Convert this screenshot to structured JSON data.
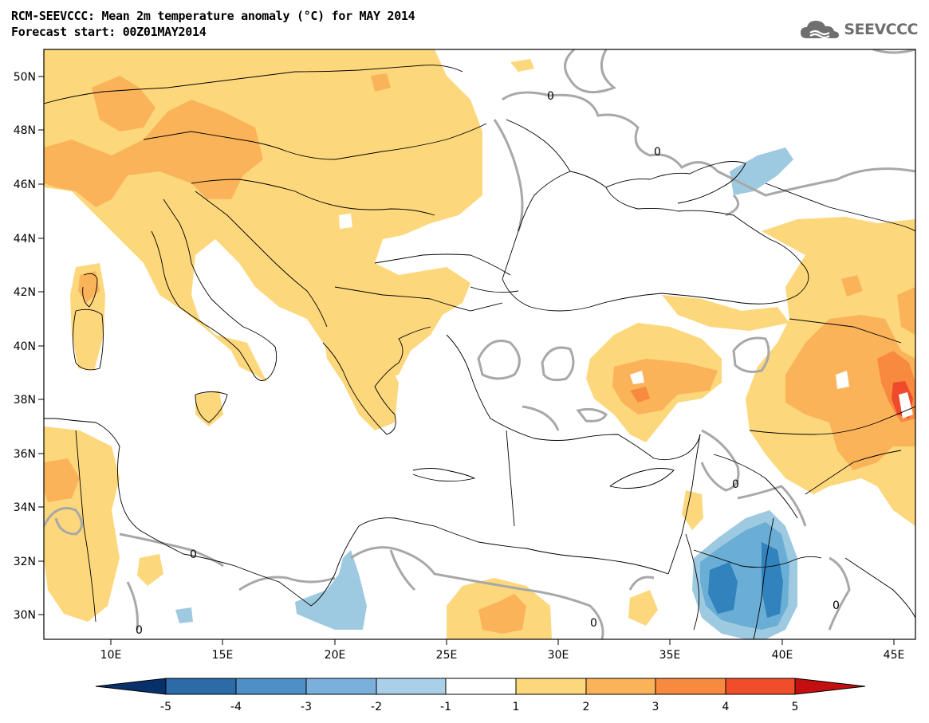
{
  "header": {
    "title_line1": "RCM-SEEVCCC: Mean 2m temperature anomaly (°C) for MAY 2014",
    "title_line2": "Forecast start: 00Z01MAY2014",
    "logo_text": "SEEVCCC"
  },
  "map": {
    "lon_ticks": [
      "10E",
      "15E",
      "20E",
      "25E",
      "30E",
      "35E",
      "40E",
      "45E"
    ],
    "lat_ticks": [
      "50N",
      "48N",
      "46N",
      "44N",
      "42N",
      "40N",
      "38N",
      "36N",
      "34N",
      "32N",
      "30N"
    ],
    "contour_label": "0",
    "colors": {
      "land_border": "#000000",
      "zero_contour": "#a8a8a8",
      "anom_1_2": "#fdd77b",
      "anom_2_3": "#fbb35a",
      "anom_3_4": "#f88a3f",
      "anom_4_5": "#ef4a2b",
      "anom_m1_m2": "#9ecae1",
      "anom_m2_m3": "#6aaed6",
      "anom_m3_m4": "#3182bd"
    }
  },
  "colorbar": {
    "labels": [
      "-5",
      "-4",
      "-3",
      "-2",
      "-1",
      "1",
      "2",
      "3",
      "4",
      "5"
    ],
    "colors": [
      "#08306b",
      "#2c6aa8",
      "#4f8fc7",
      "#7cb0dc",
      "#a9cfe9",
      "#ffffff",
      "#fdd77b",
      "#fbb35a",
      "#f88a3f",
      "#f04d2b",
      "#c40f0f"
    ]
  }
}
